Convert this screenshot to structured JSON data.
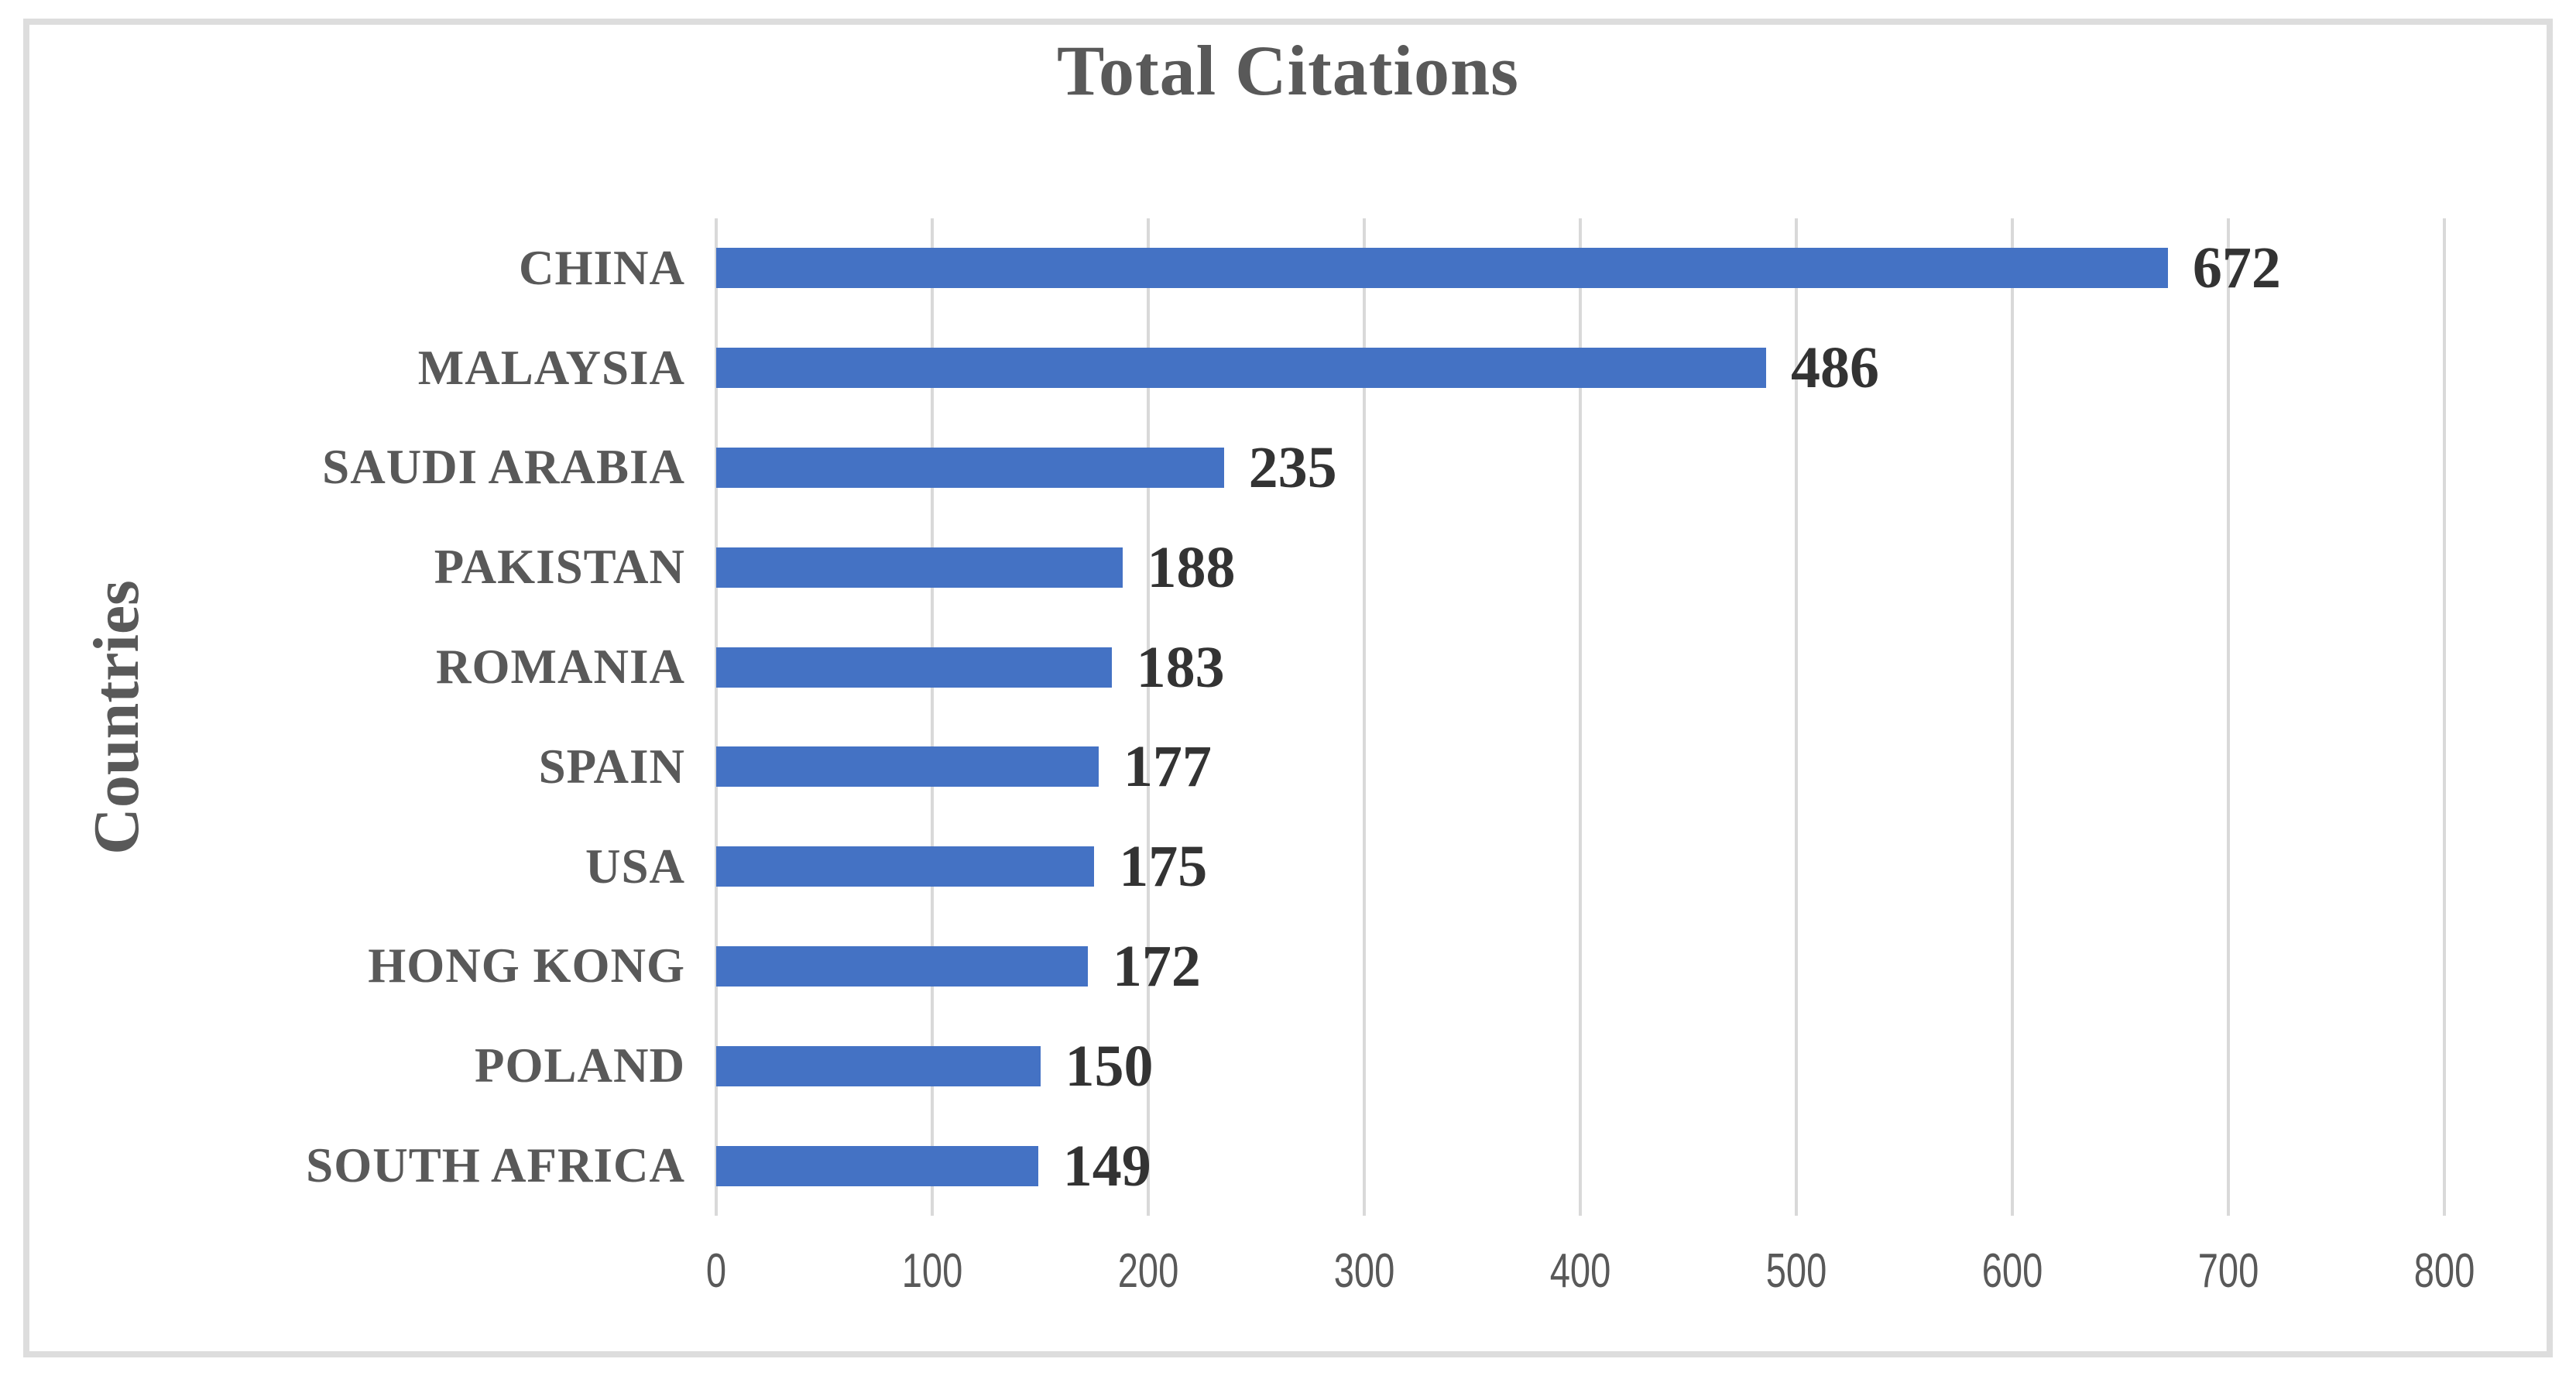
{
  "chart_data": {
    "type": "bar",
    "orientation": "horizontal",
    "title": "Total Citations",
    "xlabel": "",
    "ylabel": "Countries",
    "categories": [
      "CHINA",
      "MALAYSIA",
      "SAUDI ARABIA",
      "PAKISTAN",
      "ROMANIA",
      "SPAIN",
      "USA",
      "HONG KONG",
      "POLAND",
      "SOUTH AFRICA"
    ],
    "values": [
      672,
      486,
      235,
      188,
      183,
      177,
      175,
      172,
      150,
      149
    ],
    "data_labels_shown": true,
    "xlim": [
      0,
      800
    ],
    "xticks": [
      0,
      100,
      200,
      300,
      400,
      500,
      600,
      700,
      800
    ],
    "grid": "vertical-only",
    "legend": "none",
    "colors": {
      "bar": "#4472C4",
      "title_text": "#595959",
      "category_text": "#595959",
      "value_label_text": "#333333",
      "tick_text": "#595959",
      "gridline": "#D9D9D9",
      "frame_border": "#DDDDDD",
      "background": "#FFFFFF"
    }
  }
}
